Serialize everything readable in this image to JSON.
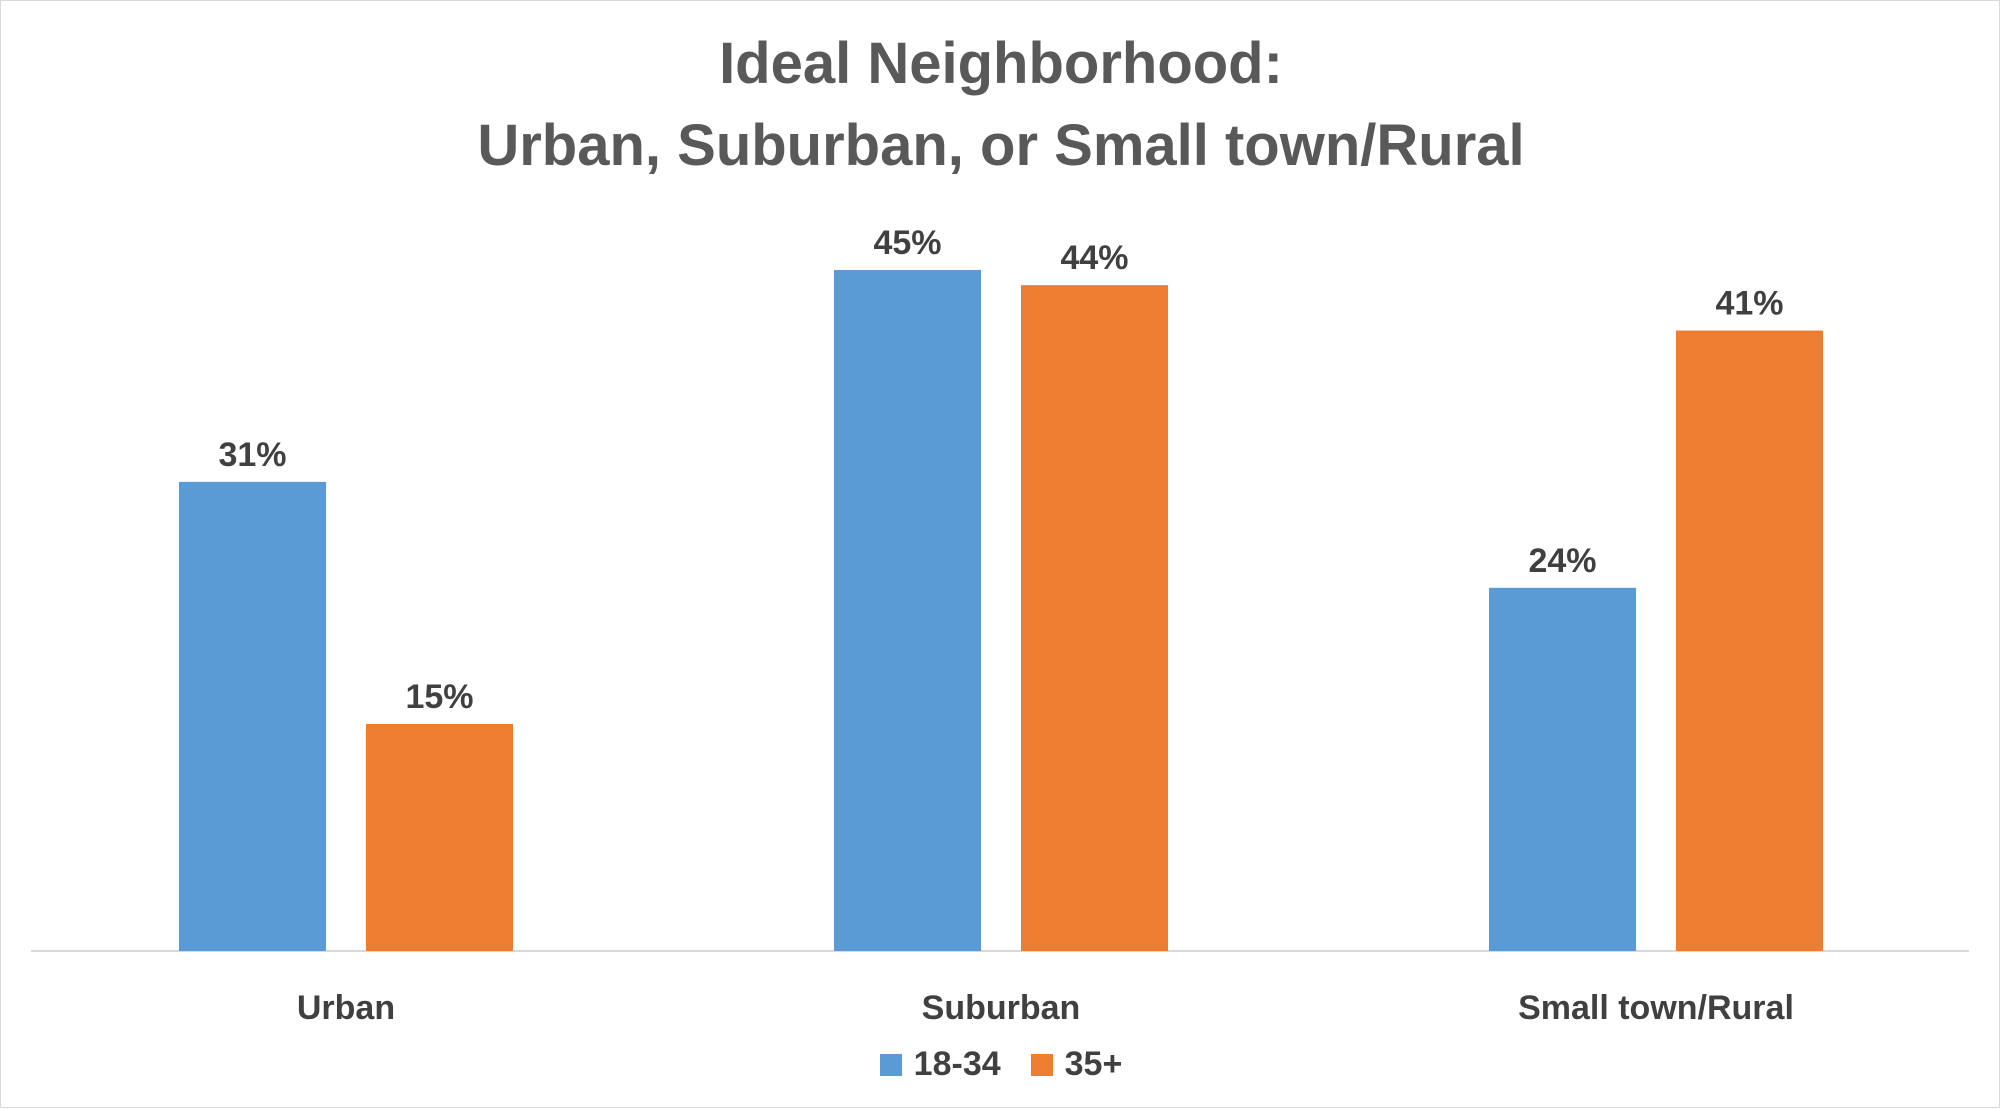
{
  "chart_data": {
    "type": "bar",
    "title": "Ideal Neighborhood:",
    "subtitle": "Urban, Suburban, or Small town/Rural",
    "categories": [
      "Urban",
      "Suburban",
      "Small town/Rural"
    ],
    "series": [
      {
        "name": "18-34",
        "values": [
          31,
          45,
          24
        ],
        "color": "#5b9bd5",
        "labels": [
          "31%",
          "45%",
          "24%"
        ]
      },
      {
        "name": "35+",
        "values": [
          15,
          44,
          41
        ],
        "color": "#ed7d31",
        "labels": [
          "15%",
          "44%",
          "41%"
        ]
      }
    ],
    "unit": "%",
    "ylim": [
      0,
      45
    ],
    "grid": false,
    "legend_position": "bottom-center",
    "xlabel": "",
    "ylabel": ""
  }
}
